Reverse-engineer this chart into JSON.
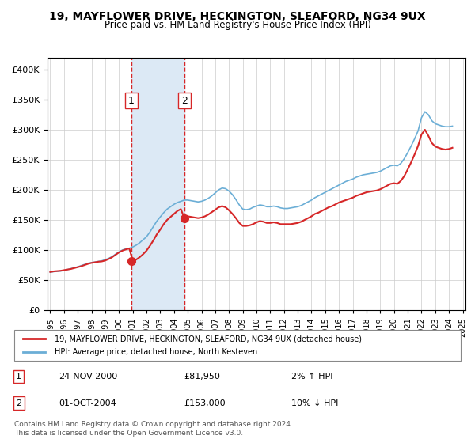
{
  "title": "19, MAYFLOWER DRIVE, HECKINGTON, SLEAFORD, NG34 9UX",
  "subtitle": "Price paid vs. HM Land Registry's House Price Index (HPI)",
  "legend_line1": "19, MAYFLOWER DRIVE, HECKINGTON, SLEAFORD, NG34 9UX (detached house)",
  "legend_line2": "HPI: Average price, detached house, North Kesteven",
  "transaction1_label": "1",
  "transaction1_date": "24-NOV-2000",
  "transaction1_price": "£81,950",
  "transaction1_hpi": "2% ↑ HPI",
  "transaction2_label": "2",
  "transaction2_date": "01-OCT-2004",
  "transaction2_price": "£153,000",
  "transaction2_hpi": "10% ↓ HPI",
  "footer1": "Contains HM Land Registry data © Crown copyright and database right 2024.",
  "footer2": "This data is licensed under the Open Government Licence v3.0.",
  "hpi_color": "#6baed6",
  "price_color": "#d62728",
  "shading_color": "#dce9f5",
  "transaction1_x": 2000.9,
  "transaction2_x": 2004.75,
  "ylim_max": 420000,
  "hpi_data": {
    "years": [
      1995.0,
      1995.25,
      1995.5,
      1995.75,
      1996.0,
      1996.25,
      1996.5,
      1996.75,
      1997.0,
      1997.25,
      1997.5,
      1997.75,
      1998.0,
      1998.25,
      1998.5,
      1998.75,
      1999.0,
      1999.25,
      1999.5,
      1999.75,
      2000.0,
      2000.25,
      2000.5,
      2000.75,
      2001.0,
      2001.25,
      2001.5,
      2001.75,
      2002.0,
      2002.25,
      2002.5,
      2002.75,
      2003.0,
      2003.25,
      2003.5,
      2003.75,
      2004.0,
      2004.25,
      2004.5,
      2004.75,
      2005.0,
      2005.25,
      2005.5,
      2005.75,
      2006.0,
      2006.25,
      2006.5,
      2006.75,
      2007.0,
      2007.25,
      2007.5,
      2007.75,
      2008.0,
      2008.25,
      2008.5,
      2008.75,
      2009.0,
      2009.25,
      2009.5,
      2009.75,
      2010.0,
      2010.25,
      2010.5,
      2010.75,
      2011.0,
      2011.25,
      2011.5,
      2011.75,
      2012.0,
      2012.25,
      2012.5,
      2012.75,
      2013.0,
      2013.25,
      2013.5,
      2013.75,
      2014.0,
      2014.25,
      2014.5,
      2014.75,
      2015.0,
      2015.25,
      2015.5,
      2015.75,
      2016.0,
      2016.25,
      2016.5,
      2016.75,
      2017.0,
      2017.25,
      2017.5,
      2017.75,
      2018.0,
      2018.25,
      2018.5,
      2018.75,
      2019.0,
      2019.25,
      2019.5,
      2019.75,
      2020.0,
      2020.25,
      2020.5,
      2020.75,
      2021.0,
      2021.25,
      2021.5,
      2021.75,
      2022.0,
      2022.25,
      2022.5,
      2022.75,
      2023.0,
      2023.25,
      2023.5,
      2023.75,
      2024.0,
      2024.25
    ],
    "values": [
      63000,
      64000,
      64500,
      65000,
      66000,
      67500,
      69000,
      70500,
      72000,
      74000,
      76000,
      78000,
      79000,
      80000,
      81000,
      82000,
      84000,
      86000,
      89000,
      93000,
      97000,
      100000,
      102000,
      103000,
      105000,
      108000,
      112000,
      117000,
      122000,
      130000,
      139000,
      148000,
      155000,
      162000,
      168000,
      172000,
      176000,
      179000,
      181000,
      183000,
      183000,
      182000,
      181000,
      180000,
      181000,
      183000,
      186000,
      190000,
      195000,
      200000,
      203000,
      202000,
      198000,
      192000,
      184000,
      175000,
      168000,
      167000,
      168000,
      171000,
      173000,
      175000,
      174000,
      172000,
      172000,
      173000,
      172000,
      170000,
      169000,
      169000,
      170000,
      171000,
      172000,
      174000,
      177000,
      180000,
      183000,
      187000,
      190000,
      193000,
      196000,
      199000,
      202000,
      205000,
      208000,
      211000,
      214000,
      216000,
      218000,
      221000,
      223000,
      225000,
      226000,
      227000,
      228000,
      229000,
      231000,
      234000,
      237000,
      240000,
      241000,
      240000,
      244000,
      252000,
      262000,
      273000,
      285000,
      298000,
      320000,
      330000,
      325000,
      315000,
      310000,
      308000,
      306000,
      305000,
      305000,
      306000
    ]
  },
  "price_data": {
    "years": [
      1995.0,
      1995.25,
      1995.5,
      1995.75,
      1996.0,
      1996.25,
      1996.5,
      1996.75,
      1997.0,
      1997.25,
      1997.5,
      1997.75,
      1998.0,
      1998.25,
      1998.5,
      1998.75,
      1999.0,
      1999.25,
      1999.5,
      1999.75,
      2000.0,
      2000.25,
      2000.5,
      2000.75,
      2001.0,
      2001.25,
      2001.5,
      2001.75,
      2002.0,
      2002.25,
      2002.5,
      2002.75,
      2003.0,
      2003.25,
      2003.5,
      2003.75,
      2004.0,
      2004.25,
      2004.5,
      2004.75,
      2005.0,
      2005.25,
      2005.5,
      2005.75,
      2006.0,
      2006.25,
      2006.5,
      2006.75,
      2007.0,
      2007.25,
      2007.5,
      2007.75,
      2008.0,
      2008.25,
      2008.5,
      2008.75,
      2009.0,
      2009.25,
      2009.5,
      2009.75,
      2010.0,
      2010.25,
      2010.5,
      2010.75,
      2011.0,
      2011.25,
      2011.5,
      2011.75,
      2012.0,
      2012.25,
      2012.5,
      2012.75,
      2013.0,
      2013.25,
      2013.5,
      2013.75,
      2014.0,
      2014.25,
      2014.5,
      2014.75,
      2015.0,
      2015.25,
      2015.5,
      2015.75,
      2016.0,
      2016.25,
      2016.5,
      2016.75,
      2017.0,
      2017.25,
      2017.5,
      2017.75,
      2018.0,
      2018.25,
      2018.5,
      2018.75,
      2019.0,
      2019.25,
      2019.5,
      2019.75,
      2020.0,
      2020.25,
      2020.5,
      2020.75,
      2021.0,
      2021.25,
      2021.5,
      2021.75,
      2022.0,
      2022.25,
      2022.5,
      2022.75,
      2023.0,
      2023.25,
      2023.5,
      2023.75,
      2024.0,
      2024.25
    ],
    "values": [
      63500,
      64500,
      65000,
      65500,
      66500,
      67500,
      68500,
      70000,
      71500,
      73000,
      75000,
      77000,
      78500,
      79500,
      80500,
      81000,
      82500,
      85000,
      88000,
      92000,
      96000,
      99000,
      101000,
      102500,
      81950,
      84000,
      88000,
      93000,
      99000,
      107000,
      116000,
      126000,
      134000,
      143000,
      150000,
      155000,
      160000,
      165000,
      168000,
      153000,
      156000,
      155000,
      154000,
      153000,
      154000,
      156000,
      159000,
      163000,
      167000,
      171000,
      173000,
      171000,
      166000,
      160000,
      153000,
      145000,
      140000,
      140000,
      141000,
      143000,
      146000,
      148000,
      147000,
      145000,
      145000,
      146000,
      145000,
      143000,
      143000,
      143000,
      143000,
      144000,
      145000,
      147000,
      150000,
      153000,
      156000,
      160000,
      162000,
      165000,
      168000,
      171000,
      173000,
      176000,
      179000,
      181000,
      183000,
      185000,
      187000,
      190000,
      192000,
      194000,
      196000,
      197000,
      198000,
      199000,
      201000,
      204000,
      207000,
      210000,
      211000,
      210000,
      215000,
      223000,
      234000,
      246000,
      259000,
      273000,
      292000,
      300000,
      290000,
      278000,
      272000,
      270000,
      268000,
      267000,
      268000,
      270000
    ]
  }
}
